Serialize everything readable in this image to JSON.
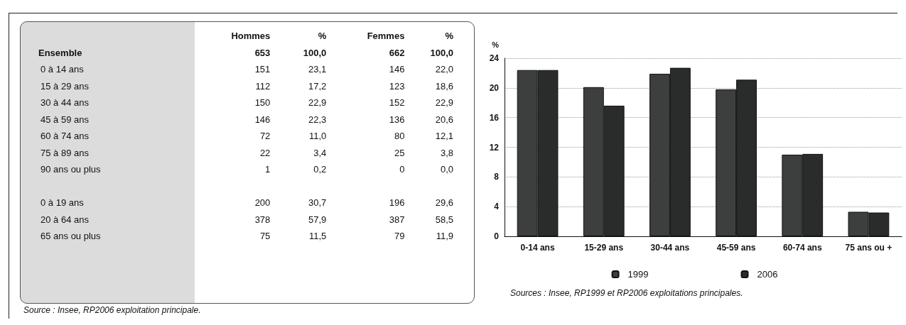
{
  "chart_data": [
    {
      "type": "other",
      "categories": [
        "Ensemble",
        "0 à 14 ans",
        "15 à 29 ans",
        "30 à 44 ans",
        "45 à 59 ans",
        "60 à 74 ans",
        "75 à 89 ans",
        "90 ans ou plus",
        null,
        "0 à 19 ans",
        "20 à 64 ans",
        "65 ans ou plus"
      ],
      "series": [
        {
          "name": "Hommes",
          "values": [
            653,
            151,
            112,
            150,
            146,
            72,
            22,
            1,
            null,
            200,
            378,
            75
          ],
          "value_labels": [
            "653",
            "151",
            "112",
            "150",
            "146",
            "72",
            "22",
            "1",
            null,
            "200",
            "378",
            "75"
          ]
        },
        {
          "name": "%",
          "values": [
            100.0,
            23.1,
            17.2,
            22.9,
            22.3,
            11.0,
            3.4,
            0.2,
            null,
            30.7,
            57.9,
            11.5
          ],
          "value_labels": [
            "100,0",
            "23,1",
            "17,2",
            "22,9",
            "22,3",
            "11,0",
            "3,4",
            "0,2",
            null,
            "30,7",
            "57,9",
            "11,5"
          ]
        },
        {
          "name": "Femmes",
          "values": [
            662,
            146,
            123,
            152,
            136,
            80,
            25,
            0,
            null,
            196,
            387,
            79
          ],
          "value_labels": [
            "662",
            "146",
            "123",
            "152",
            "136",
            "80",
            "25",
            "0",
            null,
            "196",
            "387",
            "79"
          ]
        },
        {
          "name": "%",
          "values": [
            100.0,
            22.0,
            18.6,
            22.9,
            20.6,
            12.1,
            3.8,
            0.0,
            null,
            29.6,
            58.5,
            11.9
          ],
          "value_labels": [
            "100,0",
            "22,0",
            "18,6",
            "22,9",
            "20,6",
            "12,1",
            "3,8",
            "0,0",
            null,
            "29,6",
            "58,5",
            "11,9"
          ]
        }
      ],
      "annotations": [
        "Source : Insee, RP2006 exploitation principale."
      ]
    },
    {
      "type": "bar",
      "ylabel": "%",
      "categories": [
        "0-14 ans",
        "15-29 ans",
        "30-44 ans",
        "45-59 ans",
        "60-74 ans",
        "75 ans ou +"
      ],
      "series": [
        {
          "name": "1999",
          "color": "#3c3f3e",
          "values": [
            22.4,
            20.1,
            21.9,
            19.8,
            11.0,
            3.3
          ]
        },
        {
          "name": "2006",
          "color": "#2a2c2b",
          "values": [
            22.4,
            17.6,
            22.7,
            21.1,
            11.1,
            3.2
          ]
        }
      ],
      "ylim": [
        0,
        24
      ],
      "yticks": [
        0,
        4,
        8,
        12,
        16,
        20,
        24
      ],
      "grid": "y",
      "legend": "bottom",
      "annotations": [
        "Sources : Insee, RP1999 et RP2006 exploitations principales."
      ]
    }
  ]
}
